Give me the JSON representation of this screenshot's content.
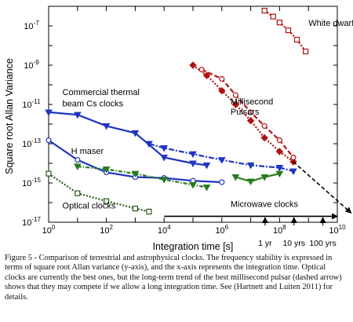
{
  "chart_data": {
    "type": "scatter",
    "xlabel": "Integration time [s]",
    "ylabel": "Square root Allan Variance",
    "x_scale": "log",
    "y_scale": "log",
    "xlim": [
      1,
      10000000000.0
    ],
    "ylim": [
      1e-17,
      1e-06
    ],
    "x_ticks": [
      {
        "v": 1,
        "label": "10",
        "exp": "0"
      },
      {
        "v": 100,
        "label": "10",
        "exp": "2"
      },
      {
        "v": 10000,
        "label": "10",
        "exp": "4"
      },
      {
        "v": 1000000,
        "label": "10",
        "exp": "6"
      },
      {
        "v": 100000000,
        "label": "10",
        "exp": "8"
      },
      {
        "v": 10000000000,
        "label": "10",
        "exp": "10"
      }
    ],
    "y_ticks": [
      {
        "v": 1e-17,
        "label": "10",
        "exp": "-17"
      },
      {
        "v": 1e-15,
        "label": "10",
        "exp": "-15"
      },
      {
        "v": 1e-13,
        "label": "10",
        "exp": "-13"
      },
      {
        "v": 1e-11,
        "label": "10",
        "exp": "-11"
      },
      {
        "v": 1e-09,
        "label": "10",
        "exp": "-9"
      },
      {
        "v": 1e-07,
        "label": "10",
        "exp": "-7"
      }
    ],
    "grid": false,
    "series": [
      {
        "name": "Commercial thermal beam Cs clocks",
        "color": "#1f35c4",
        "style": "solid",
        "marker": "tri",
        "points": [
          [
            1,
            4e-12
          ],
          [
            10,
            3e-12
          ],
          [
            100,
            8e-13
          ],
          [
            1000,
            3.5e-13
          ],
          [
            10000,
            2e-14
          ],
          [
            100000,
            1e-14
          ],
          [
            300000,
            8e-15
          ]
        ]
      },
      {
        "name": "H maser",
        "color": "#1f35c4",
        "style": "solid",
        "marker": "circle",
        "points": [
          [
            1,
            1.5e-13
          ],
          [
            10,
            1.5e-14
          ],
          [
            100,
            3.5e-15
          ],
          [
            1000,
            2e-15
          ],
          [
            10000,
            1.8e-15
          ],
          [
            100000,
            1.3e-15
          ],
          [
            1000000,
            1.1e-15
          ]
        ]
      },
      {
        "name": "Optical clocks",
        "color": "#2a5a18",
        "style": "dotted",
        "marker": "square",
        "points": [
          [
            1,
            3e-15
          ],
          [
            10,
            3e-16
          ],
          [
            100,
            1.2e-16
          ],
          [
            1000,
            5e-17
          ],
          [
            3000,
            3.5e-17
          ]
        ]
      },
      {
        "name": "Microwave clocks (a)",
        "color": "#2a7a20",
        "style": "dotdash",
        "marker": "tri",
        "points": [
          [
            10,
            7e-15
          ],
          [
            100,
            5e-15
          ],
          [
            1000,
            3e-15
          ],
          [
            10000,
            1.5e-15
          ],
          [
            100000,
            8e-16
          ],
          [
            300000,
            6e-16
          ]
        ]
      },
      {
        "name": "Microwave clocks (b)",
        "color": "#1f35c4",
        "style": "dashdot",
        "marker": "tri",
        "points": [
          [
            3000,
            1e-13
          ],
          [
            10000,
            6e-14
          ],
          [
            100000,
            3e-14
          ],
          [
            1000000,
            1.5e-14
          ],
          [
            10000000,
            8e-15
          ],
          [
            100000000,
            6e-15
          ],
          [
            300000000,
            4e-15
          ]
        ]
      },
      {
        "name": "Microwave clocks (c)",
        "color": "#2a7a20",
        "style": "solid",
        "marker": "tri",
        "points": [
          [
            3000000,
            2e-15
          ],
          [
            10000000,
            1.2e-15
          ],
          [
            30000000,
            2e-15
          ],
          [
            100000000,
            3e-15
          ]
        ]
      },
      {
        "name": "Millisecond Pulsars (a)",
        "color": "#b01010",
        "style": "dotted",
        "marker": "diamond",
        "points": [
          [
            100000,
            1e-09
          ],
          [
            300000,
            3e-10
          ],
          [
            1000000,
            5e-11
          ],
          [
            3000000,
            1e-11
          ],
          [
            10000000,
            1.5e-12
          ],
          [
            30000000,
            2e-13
          ],
          [
            100000000,
            4e-14
          ],
          [
            300000000,
            1.2e-14
          ]
        ]
      },
      {
        "name": "Millisecond Pulsars (b)",
        "color": "#b01010",
        "style": "dashed",
        "marker": "circle",
        "points": [
          [
            200000,
            6e-10
          ],
          [
            1000000,
            2e-10
          ],
          [
            3000000,
            3e-11
          ],
          [
            10000000,
            4e-12
          ],
          [
            30000000,
            8e-13
          ],
          [
            100000000,
            1.5e-13
          ],
          [
            300000000,
            2e-14
          ]
        ]
      },
      {
        "name": "White dwarf",
        "color": "#b01010",
        "style": "dotted",
        "marker": "square",
        "points": [
          [
            30000000,
            6e-07
          ],
          [
            60000000,
            3e-07
          ],
          [
            100000000,
            1.5e-07
          ],
          [
            200000000,
            6e-08
          ],
          [
            400000000,
            2e-08
          ],
          [
            800000000,
            5e-09
          ]
        ]
      }
    ],
    "trend_arrow": {
      "from": [
        300000000,
        1.2e-14
      ],
      "to": [
        30000000000,
        3e-17
      ]
    },
    "time_arrow": {
      "from": [
        10000,
        2e-17
      ],
      "to": [
        10000000000,
        2e-17
      ]
    },
    "annotations": [
      {
        "text": "White dwarf",
        "x": 1000000000,
        "y": 1e-07
      },
      {
        "text": "Commercial thermal",
        "x": 3,
        "y": 3e-11
      },
      {
        "text": "beam Cs clocks",
        "x": 3,
        "y": 8e-12
      },
      {
        "text": "H maser",
        "x": 6,
        "y": 3e-14
      },
      {
        "text": "Millisecond",
        "x": 2000000,
        "y": 1e-11
      },
      {
        "text": "Pulsars",
        "x": 2000000,
        "y": 3e-12
      },
      {
        "text": "Optical clocks",
        "x": 3,
        "y": 5e-17
      },
      {
        "text": "Microwave clocks",
        "x": 2000000,
        "y": 6e-17
      }
    ],
    "time_markers": [
      {
        "text": "1 yr",
        "v": 31500000
      },
      {
        "text": "10 yrs",
        "v": 315000000
      },
      {
        "text": "100 yrs",
        "v": 3150000000
      }
    ]
  },
  "caption": "Figure 5 - Comparison of terrestrial and astrophysical clocks. The frequency stability is expressed in terms of square root Allan variance (y-axis), and the x-axis represents the integration time. Optical clocks are currently the best ones, but the long-term trend of the best millisecond pulsar (dashed arrow) shows that they may compete if we allow a long integration time. See (Hartnett and Luiten 2011) for details."
}
